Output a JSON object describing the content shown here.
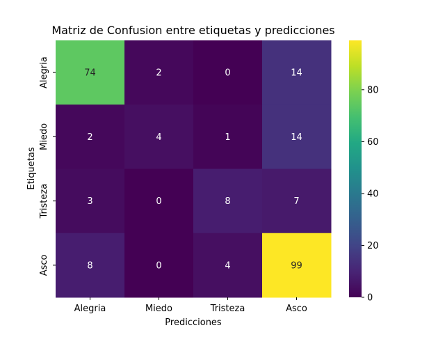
{
  "chart_data": {
    "type": "heatmap",
    "title": "Matriz de Confusion entre etiquetas y predicciones",
    "xlabel": "Predicciones",
    "ylabel": "Etiquetas",
    "x_categories": [
      "Alegria",
      "Miedo",
      "Tristeza",
      "Asco"
    ],
    "y_categories": [
      "Alegria",
      "Miedo",
      "Tristeza",
      "Asco"
    ],
    "values": [
      [
        74,
        2,
        0,
        14
      ],
      [
        2,
        4,
        1,
        14
      ],
      [
        3,
        0,
        8,
        7
      ],
      [
        8,
        0,
        4,
        99
      ]
    ],
    "colormap": "viridis",
    "vmin": 0,
    "vmax": 99,
    "colorbar_ticks": [
      0,
      20,
      40,
      60,
      80
    ],
    "annotations": true,
    "grid": false
  }
}
